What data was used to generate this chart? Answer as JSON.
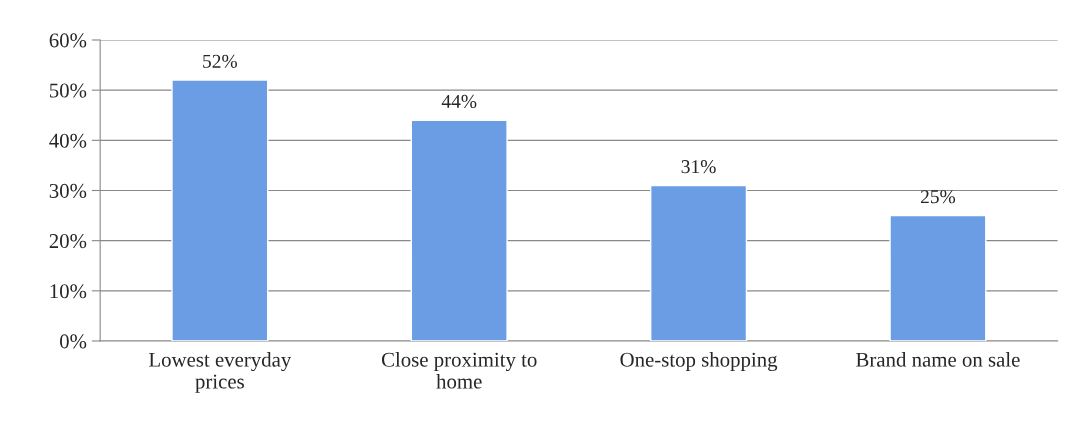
{
  "chart_data": {
    "type": "bar",
    "categories": [
      "Lowest everyday\nprices",
      "Close proximity to\nhome",
      "One-stop shopping",
      "Brand name on sale"
    ],
    "values": [
      52,
      44,
      31,
      25
    ],
    "value_labels": [
      "52%",
      "44%",
      "31%",
      "25%"
    ],
    "color": "#6b9de4",
    "ylim": [
      0,
      60
    ],
    "yticks": [
      {
        "value": 0,
        "label": "0%"
      },
      {
        "value": 10,
        "label": "10%"
      },
      {
        "value": 20,
        "label": "20%"
      },
      {
        "value": 30,
        "label": "30%"
      },
      {
        "value": 40,
        "label": "40%"
      },
      {
        "value": 50,
        "label": "50%"
      },
      {
        "value": 60,
        "label": "60%"
      }
    ],
    "grid": "y"
  }
}
